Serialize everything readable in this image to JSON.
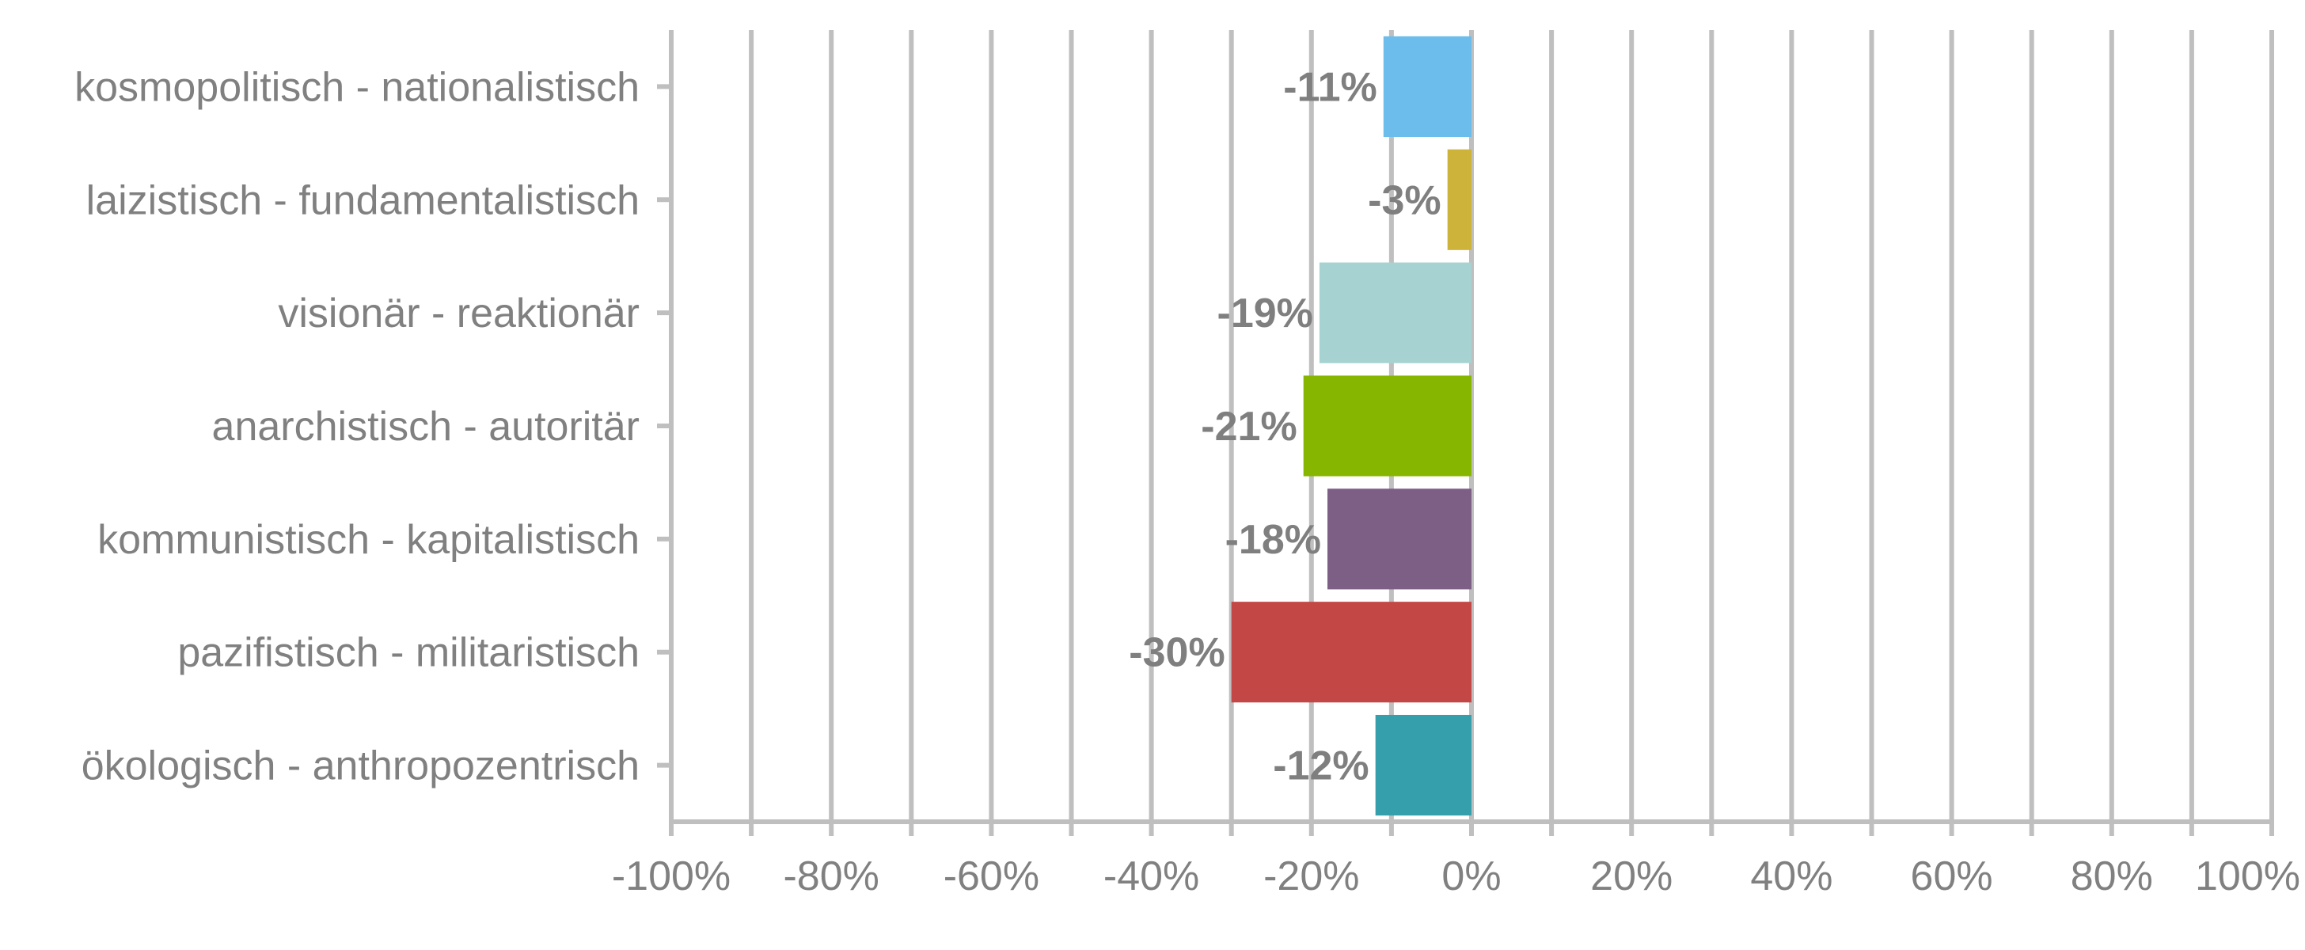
{
  "chart_data": {
    "type": "bar",
    "orientation": "horizontal",
    "categories": [
      "kosmopolitisch - nationalistisch",
      "laizistisch - fundamentalistisch",
      "visionär - reaktionär",
      "anarchistisch - autoritär",
      "kommunistisch - kapitalistisch",
      "pazifistisch - militaristisch",
      "ökologisch - anthropozentrisch"
    ],
    "values": [
      -11,
      -3,
      -19,
      -21,
      -18,
      -30,
      -12
    ],
    "value_labels": [
      "-11%",
      "-3%",
      "-19%",
      "-21%",
      "-18%",
      "-30%",
      "-12%"
    ],
    "bar_colors": [
      "#6cbdec",
      "#cdb33a",
      "#a6d3d1",
      "#86b600",
      "#7d5f86",
      "#c34745",
      "#35a0ab"
    ],
    "xlim": [
      -100,
      100
    ],
    "x_ticks": [
      -100,
      -80,
      -60,
      -40,
      -20,
      0,
      20,
      40,
      60,
      80,
      100
    ],
    "x_tick_labels": [
      "-100%",
      "-80%",
      "-60%",
      "-40%",
      "-20%",
      "0%",
      "20%",
      "40%",
      "60%",
      "80%",
      "100%"
    ],
    "grid": true,
    "grid_color": "#bfbfbf",
    "text_color": "#808080"
  }
}
